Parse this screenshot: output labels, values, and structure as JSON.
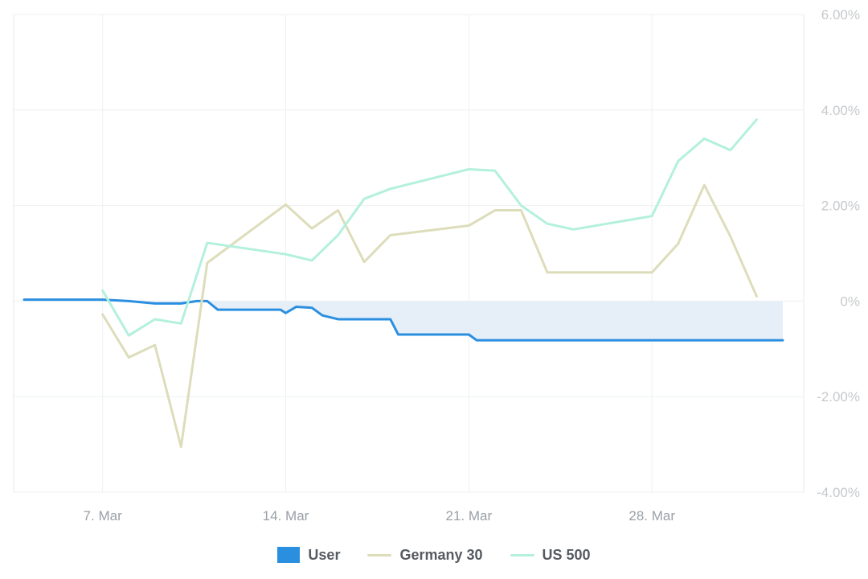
{
  "chart_data": {
    "type": "line",
    "x_axis": {
      "type": "date",
      "tick_labels": [
        "7. Mar",
        "14. Mar",
        "21. Mar",
        "28. Mar"
      ],
      "tick_dates": [
        "03-07",
        "03-14",
        "03-21",
        "03-28"
      ],
      "range": [
        "03-04",
        "04-02"
      ]
    },
    "y_axis": {
      "position": "right",
      "unit": "%",
      "ylim": [
        -4,
        6
      ],
      "tick_values": [
        6,
        4,
        2,
        0,
        -2,
        -4
      ],
      "tick_labels": [
        "6.00%",
        "4.00%",
        "2.00%",
        "0%",
        "-2.00%",
        "-4.00%"
      ]
    },
    "grid": true,
    "legend_placement": "bottom-center",
    "series": [
      {
        "name": "User",
        "type": "area-step",
        "color": "#2b8fe0",
        "fill": "#e6eef7",
        "points": [
          [
            "03-04",
            0.03
          ],
          [
            "03-05",
            0.03
          ],
          [
            "03-06",
            0.03
          ],
          [
            "03-07",
            0.03
          ],
          [
            "03-08",
            0.0
          ],
          [
            "03-09",
            -0.05
          ],
          [
            "03-10",
            -0.05
          ],
          [
            "03-10.6",
            0.0
          ],
          [
            "03-11",
            0.0
          ],
          [
            "03-11.4",
            -0.18
          ],
          [
            "03-12",
            -0.18
          ],
          [
            "03-13",
            -0.18
          ],
          [
            "03-13.8",
            -0.18
          ],
          [
            "03-14",
            -0.25
          ],
          [
            "03-14.4",
            -0.12
          ],
          [
            "03-15",
            -0.14
          ],
          [
            "03-15.4",
            -0.3
          ],
          [
            "03-16",
            -0.38
          ],
          [
            "03-17",
            -0.38
          ],
          [
            "03-18",
            -0.38
          ],
          [
            "03-18.3",
            -0.7
          ],
          [
            "03-19",
            -0.7
          ],
          [
            "03-20",
            -0.7
          ],
          [
            "03-21",
            -0.7
          ],
          [
            "03-21.3",
            -0.82
          ],
          [
            "03-22",
            -0.82
          ],
          [
            "03-25",
            -0.82
          ],
          [
            "03-28",
            -0.82
          ],
          [
            "04-01",
            -0.82
          ],
          [
            "04-02",
            -0.82
          ]
        ]
      },
      {
        "name": "Germany 30",
        "type": "line",
        "color": "#ddddbb",
        "points": [
          [
            "03-07",
            -0.28
          ],
          [
            "03-08",
            -1.18
          ],
          [
            "03-09",
            -0.92
          ],
          [
            "03-10",
            -3.05
          ],
          [
            "03-11",
            0.8
          ],
          [
            "03-14",
            2.02
          ],
          [
            "03-15",
            1.52
          ],
          [
            "03-16",
            1.9
          ],
          [
            "03-17",
            0.82
          ],
          [
            "03-18",
            1.38
          ],
          [
            "03-21",
            1.58
          ],
          [
            "03-22",
            1.9
          ],
          [
            "03-23",
            1.9
          ],
          [
            "03-24",
            0.6
          ],
          [
            "03-28",
            0.6
          ],
          [
            "03-29",
            1.2
          ],
          [
            "03-30",
            2.43
          ],
          [
            "03-31",
            1.35
          ],
          [
            "04-01",
            0.1
          ]
        ]
      },
      {
        "name": "US 500",
        "type": "line",
        "color": "#b3f0dd",
        "points": [
          [
            "03-07",
            0.22
          ],
          [
            "03-08",
            -0.72
          ],
          [
            "03-09",
            -0.38
          ],
          [
            "03-10",
            -0.47
          ],
          [
            "03-11",
            1.22
          ],
          [
            "03-14",
            0.98
          ],
          [
            "03-15",
            0.85
          ],
          [
            "03-16",
            1.38
          ],
          [
            "03-17",
            2.14
          ],
          [
            "03-18",
            2.35
          ],
          [
            "03-21",
            2.76
          ],
          [
            "03-22",
            2.73
          ],
          [
            "03-23",
            2.0
          ],
          [
            "03-24",
            1.62
          ],
          [
            "03-25",
            1.5
          ],
          [
            "03-28",
            1.78
          ],
          [
            "03-29",
            2.93
          ],
          [
            "03-30",
            3.4
          ],
          [
            "03-31",
            3.16
          ],
          [
            "04-01",
            3.8
          ]
        ]
      }
    ]
  },
  "legend": {
    "items": [
      {
        "label": "User",
        "symbol": "box",
        "color": "#2b8fe0"
      },
      {
        "label": "Germany 30",
        "symbol": "line",
        "color": "#ddddbb"
      },
      {
        "label": "US 500",
        "symbol": "line",
        "color": "#b3f0dd"
      }
    ]
  }
}
